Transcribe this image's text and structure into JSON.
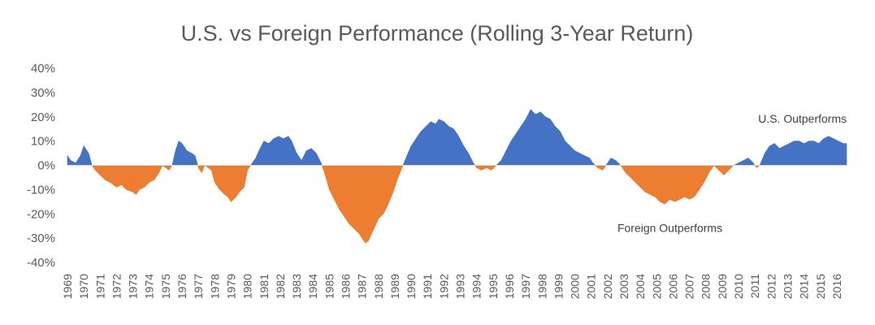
{
  "chart_data": {
    "type": "area",
    "title": "U.S. vs Foreign Performance (Rolling 3-Year Return)",
    "xlabel": "",
    "ylabel": "",
    "ylim": [
      -0.4,
      0.4
    ],
    "yticks": [
      "40%",
      "30%",
      "20%",
      "10%",
      "0%",
      "-10%",
      "-20%",
      "-30%",
      "-40%"
    ],
    "xlim": [
      1969.0,
      2016.6
    ],
    "xticks": [
      "1969",
      "1970",
      "1971",
      "1972",
      "1973",
      "1974",
      "1975",
      "1976",
      "1977",
      "1978",
      "1979",
      "1980",
      "1981",
      "1982",
      "1983",
      "1984",
      "1985",
      "1986",
      "1987",
      "1988",
      "1989",
      "1990",
      "1991",
      "1992",
      "1993",
      "1994",
      "1995",
      "1996",
      "1997",
      "1998",
      "1999",
      "2000",
      "2001",
      "2002",
      "2003",
      "2004",
      "2005",
      "2006",
      "2007",
      "2008",
      "2009",
      "2010",
      "2011",
      "2012",
      "2013",
      "2014",
      "2015",
      "2016"
    ],
    "grid": false,
    "legend": "none",
    "colors": {
      "positive": "#4472C4",
      "negative": "#ED7D31"
    },
    "annotations": [
      {
        "text": "U.S. Outperforms",
        "x": 2011.2,
        "y": 0.175
      },
      {
        "text": "Foreign Outperforms",
        "x": 2002.6,
        "y": -0.275
      }
    ],
    "series": [
      {
        "x": [
          1969.0,
          1969.2,
          1969.5,
          1969.8,
          1970.0,
          1970.3,
          1970.5,
          1970.7,
          1971.0,
          1971.3,
          1971.6,
          1972.0,
          1972.3,
          1972.6,
          1973.0,
          1973.2,
          1973.4,
          1973.7,
          1974.0,
          1974.3,
          1974.6,
          1974.8,
          1975.0,
          1975.2,
          1975.4,
          1975.6,
          1975.8,
          1976.0,
          1976.3,
          1976.6,
          1976.8,
          1977.0,
          1977.2,
          1977.4,
          1977.8,
          1978.0,
          1978.3,
          1978.6,
          1978.8,
          1979.0,
          1979.3,
          1979.5,
          1979.8,
          1980.0,
          1980.2,
          1980.5,
          1980.7,
          1981.0,
          1981.3,
          1981.6,
          1981.9,
          1982.2,
          1982.5,
          1982.7,
          1983.0,
          1983.3,
          1983.6,
          1983.9,
          1984.2,
          1984.5,
          1984.7,
          1985.0,
          1985.3,
          1985.6,
          1985.9,
          1986.2,
          1986.5,
          1986.8,
          1987.0,
          1987.2,
          1987.4,
          1987.6,
          1987.8,
          1988.0,
          1988.3,
          1988.6,
          1988.9,
          1989.2,
          1989.5,
          1989.8,
          1990.0,
          1990.3,
          1990.6,
          1990.9,
          1991.2,
          1991.5,
          1991.7,
          1992.0,
          1992.3,
          1992.6,
          1992.9,
          1993.2,
          1993.5,
          1993.8,
          1994.0,
          1994.3,
          1994.6,
          1994.9,
          1995.2,
          1995.5,
          1995.8,
          1996.1,
          1996.4,
          1996.7,
          1997.0,
          1997.3,
          1997.6,
          1997.9,
          1998.2,
          1998.5,
          1998.8,
          1999.1,
          1999.4,
          1999.7,
          2000.0,
          2000.3,
          2000.6,
          2000.9,
          2001.1,
          2001.4,
          2001.7,
          2002.0,
          2002.2,
          2002.5,
          2002.8,
          2003.1,
          2003.4,
          2003.7,
          2004.0,
          2004.3,
          2004.6,
          2004.9,
          2005.2,
          2005.5,
          2005.8,
          2006.1,
          2006.4,
          2006.7,
          2007.0,
          2007.3,
          2007.6,
          2007.9,
          2008.2,
          2008.5,
          2008.8,
          2009.1,
          2009.4,
          2009.7,
          2010.0,
          2010.3,
          2010.6,
          2010.9,
          2011.1,
          2011.3,
          2011.6,
          2011.9,
          2012.2,
          2012.5,
          2012.8,
          2013.1,
          2013.4,
          2013.7,
          2014.0,
          2014.3,
          2014.6,
          2014.9,
          2015.2,
          2015.5,
          2015.8,
          2016.1,
          2016.4,
          2016.6
        ],
        "y": [
          0.04,
          0.02,
          0.01,
          0.04,
          0.08,
          0.05,
          0.0,
          -0.02,
          -0.04,
          -0.06,
          -0.07,
          -0.09,
          -0.08,
          -0.1,
          -0.11,
          -0.12,
          -0.1,
          -0.09,
          -0.07,
          -0.06,
          -0.03,
          0.0,
          -0.01,
          -0.02,
          0.0,
          0.06,
          0.1,
          0.09,
          0.06,
          0.05,
          0.04,
          -0.01,
          -0.03,
          0.0,
          -0.02,
          -0.07,
          -0.1,
          -0.12,
          -0.13,
          -0.15,
          -0.13,
          -0.11,
          -0.09,
          -0.02,
          0.0,
          0.03,
          0.06,
          0.1,
          0.09,
          0.11,
          0.12,
          0.11,
          0.12,
          0.1,
          0.05,
          0.02,
          0.06,
          0.07,
          0.05,
          0.01,
          -0.03,
          -0.1,
          -0.14,
          -0.18,
          -0.21,
          -0.24,
          -0.26,
          -0.28,
          -0.3,
          -0.32,
          -0.31,
          -0.28,
          -0.25,
          -0.22,
          -0.2,
          -0.16,
          -0.11,
          -0.05,
          0.0,
          0.05,
          0.08,
          0.11,
          0.14,
          0.16,
          0.18,
          0.17,
          0.19,
          0.18,
          0.16,
          0.15,
          0.12,
          0.08,
          0.05,
          0.01,
          -0.01,
          -0.02,
          -0.01,
          -0.02,
          0.0,
          0.02,
          0.06,
          0.1,
          0.13,
          0.16,
          0.19,
          0.23,
          0.21,
          0.22,
          0.2,
          0.19,
          0.16,
          0.14,
          0.1,
          0.08,
          0.06,
          0.05,
          0.04,
          0.03,
          0.01,
          -0.01,
          -0.02,
          0.01,
          0.03,
          0.02,
          0.0,
          -0.03,
          -0.05,
          -0.07,
          -0.09,
          -0.11,
          -0.12,
          -0.13,
          -0.15,
          -0.16,
          -0.14,
          -0.15,
          -0.14,
          -0.13,
          -0.14,
          -0.13,
          -0.1,
          -0.07,
          -0.03,
          0.0,
          -0.02,
          -0.04,
          -0.02,
          0.0,
          0.01,
          0.02,
          0.03,
          0.01,
          -0.01,
          0.0,
          0.05,
          0.08,
          0.09,
          0.07,
          0.08,
          0.09,
          0.1,
          0.1,
          0.09,
          0.1,
          0.1,
          0.09,
          0.11,
          0.12,
          0.11,
          0.1,
          0.09,
          0.09
        ]
      }
    ]
  }
}
